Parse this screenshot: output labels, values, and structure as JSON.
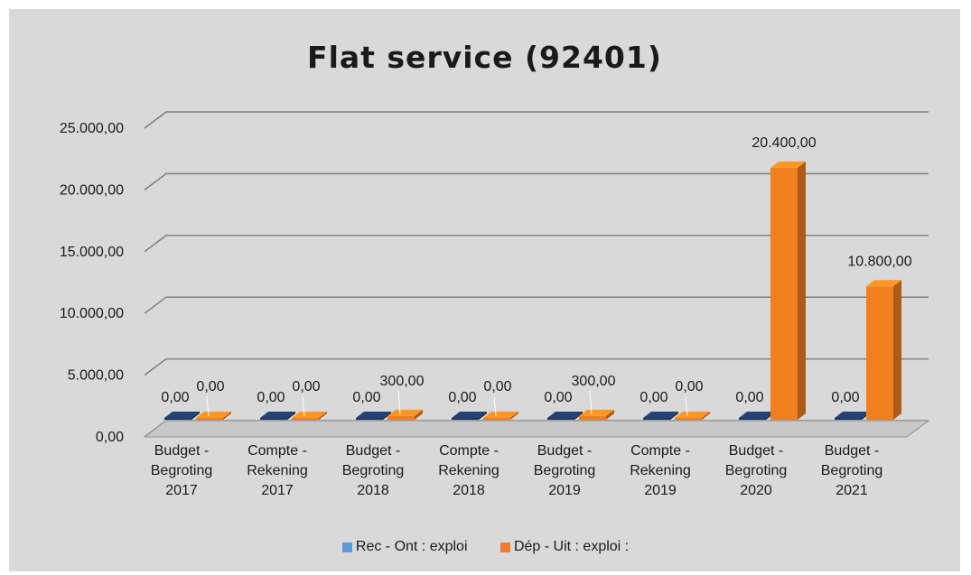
{
  "chart_data": {
    "type": "bar",
    "title": "Flat service (92401)",
    "categories": [
      [
        "Budget -",
        "Begroting",
        "2017"
      ],
      [
        "Compte -",
        "Rekening",
        "2017"
      ],
      [
        "Budget -",
        "Begroting",
        "2018"
      ],
      [
        "Compte -",
        "Rekening",
        "2018"
      ],
      [
        "Budget -",
        "Begroting",
        "2019"
      ],
      [
        "Compte -",
        "Rekening",
        "2019"
      ],
      [
        "Budget -",
        "Begroting",
        "2020"
      ],
      [
        "Budget -",
        "Begroting",
        "2021"
      ]
    ],
    "series": [
      {
        "name": "Rec - Ont : exploi",
        "color": "#1f3864",
        "values": [
          0,
          0,
          0,
          0,
          0,
          0,
          0,
          0
        ],
        "labels": [
          "0,00",
          "0,00",
          "0,00",
          "0,00",
          "0,00",
          "0,00",
          "0,00",
          "0,00"
        ]
      },
      {
        "name": "Dép - Uit : exploi :",
        "color": "#f07f1e",
        "values": [
          0,
          0,
          300,
          0,
          300,
          0,
          20400,
          10800
        ],
        "labels": [
          "0,00",
          "0,00",
          "300,00",
          "0,00",
          "300,00",
          "0,00",
          "20.400,00",
          "10.800,00"
        ]
      }
    ],
    "yticks": [
      0,
      5000,
      10000,
      15000,
      20000,
      25000
    ],
    "ytick_labels": [
      "0,00",
      "5.000,00",
      "10.000,00",
      "15.000,00",
      "20.000,00",
      "25.000,00"
    ],
    "ylim": [
      0,
      25000
    ],
    "grid": true,
    "legend_position": "bottom",
    "legend_colors": [
      "#5b9bd5",
      "#ed7d31"
    ]
  }
}
